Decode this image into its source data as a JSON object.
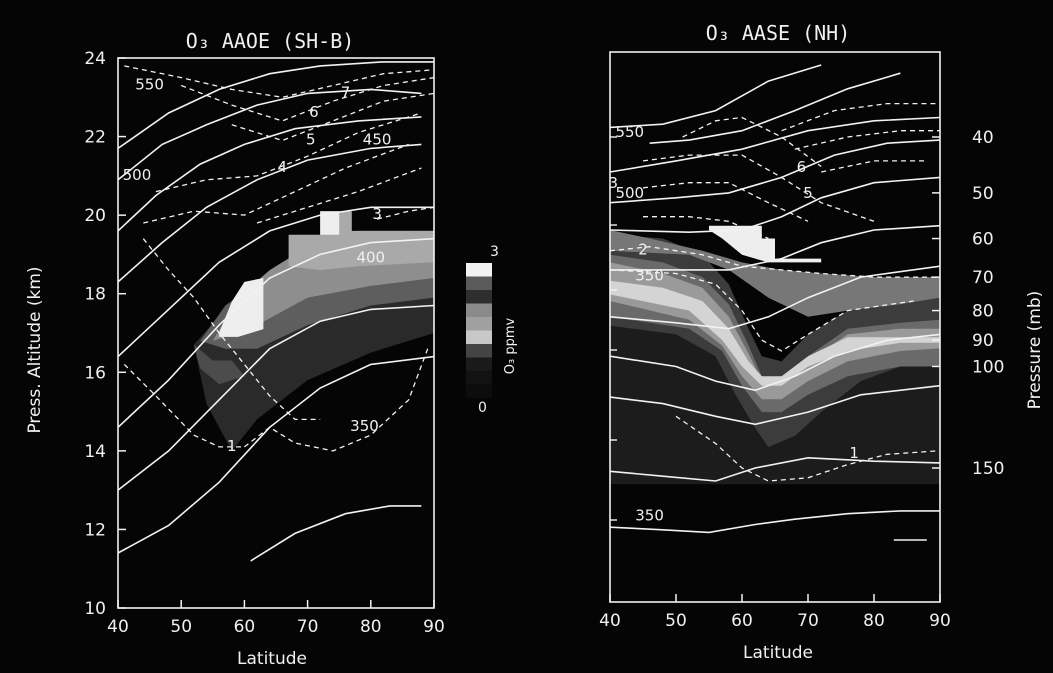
{
  "chart_data": [
    {
      "type": "contour",
      "title": "O₃ AAOE (SH-B)",
      "xlabel": "Latitude",
      "ylabel": "Press. Altitude (km)",
      "xlim": [
        40,
        90
      ],
      "ylim": [
        10,
        24
      ],
      "x_ticks": [
        40,
        50,
        60,
        70,
        80,
        90
      ],
      "y_ticks": [
        10,
        12,
        14,
        16,
        18,
        20,
        22,
        24
      ],
      "contour_labels": [
        {
          "text": "550",
          "x": 45,
          "y": 23.2
        },
        {
          "text": "7",
          "x": 76,
          "y": 23.0
        },
        {
          "text": "6",
          "x": 71,
          "y": 22.5
        },
        {
          "text": "5",
          "x": 70.5,
          "y": 21.8
        },
        {
          "text": "450",
          "x": 81,
          "y": 21.8
        },
        {
          "text": "500",
          "x": 43,
          "y": 20.9
        },
        {
          "text": "4",
          "x": 66,
          "y": 21.1
        },
        {
          "text": "3",
          "x": 81,
          "y": 19.9
        },
        {
          "text": "400",
          "x": 80,
          "y": 18.8
        },
        {
          "text": "350",
          "x": 79,
          "y": 14.5
        },
        {
          "text": "1",
          "x": 58,
          "y": 14.0
        }
      ]
    },
    {
      "type": "contour",
      "title": "O₃ AASE (NH)",
      "xlabel": "Latitude",
      "ylabel": "Pressure (mb)",
      "xlim": [
        40,
        90
      ],
      "x_ticks": [
        40,
        50,
        60,
        70,
        80,
        90
      ],
      "y_ticks": [
        40,
        50,
        60,
        70,
        80,
        90,
        100,
        150
      ],
      "contour_labels": [
        {
          "text": "550",
          "x": 43,
          "y": 40
        },
        {
          "text": "6",
          "x": 69,
          "y": 46
        },
        {
          "text": "5",
          "x": 70,
          "y": 51
        },
        {
          "text": "500",
          "x": 43,
          "y": 51
        },
        {
          "text": "3",
          "x": 40.5,
          "y": 49
        },
        {
          "text": "2",
          "x": 45,
          "y": 64
        },
        {
          "text": "350",
          "x": 46,
          "y": 71
        },
        {
          "text": "1",
          "x": 77,
          "y": 144
        },
        {
          "text": "350",
          "x": 46,
          "y": 185
        }
      ]
    }
  ],
  "colorbar": {
    "label": "O₃ ppmv",
    "max_label": "3",
    "min_label": "0"
  }
}
